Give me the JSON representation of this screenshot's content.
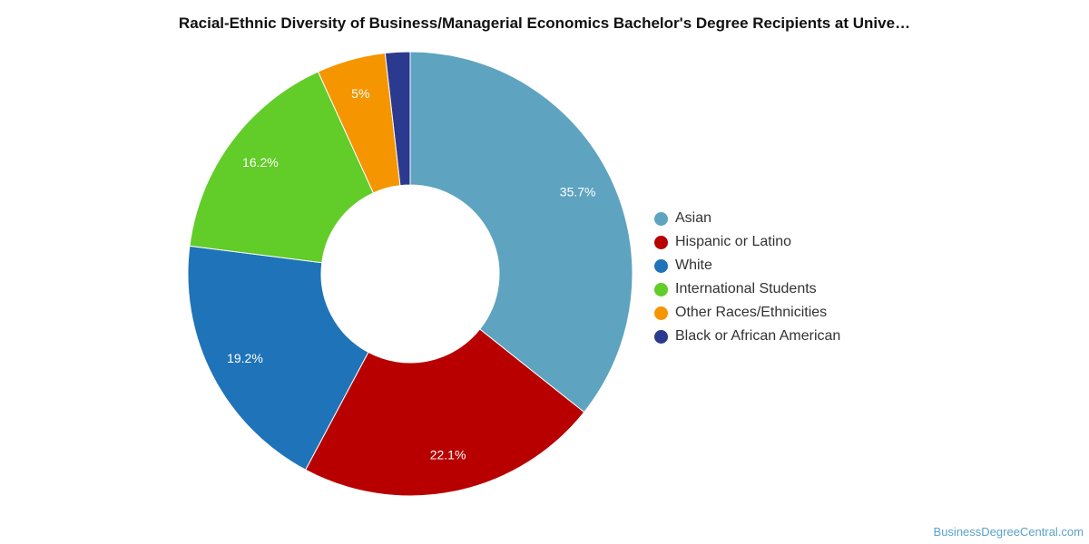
{
  "chart_data": {
    "type": "pie",
    "variant": "donut",
    "title": "Racial-Ethnic Diversity of Business/Managerial Economics Bachelor's Degree Recipients at Unive…",
    "slices": [
      {
        "name": "Asian",
        "value": 35.7,
        "label": "35.7%",
        "color": "#5ea3c0"
      },
      {
        "name": "Hispanic or Latino",
        "value": 22.1,
        "label": "22.1%",
        "color": "#b80000"
      },
      {
        "name": "White",
        "value": 19.2,
        "label": "19.2%",
        "color": "#1f73b8"
      },
      {
        "name": "International Students",
        "value": 16.2,
        "label": "16.2%",
        "color": "#62cc29"
      },
      {
        "name": "Other Races/Ethnicities",
        "value": 5.0,
        "label": "5%",
        "color": "#f59500"
      },
      {
        "name": "Black or African American",
        "value": 1.8,
        "label": "",
        "color": "#2b3a8f"
      }
    ],
    "legend_position": "right"
  },
  "footer": {
    "watermark": "BusinessDegreeCentral.com"
  }
}
